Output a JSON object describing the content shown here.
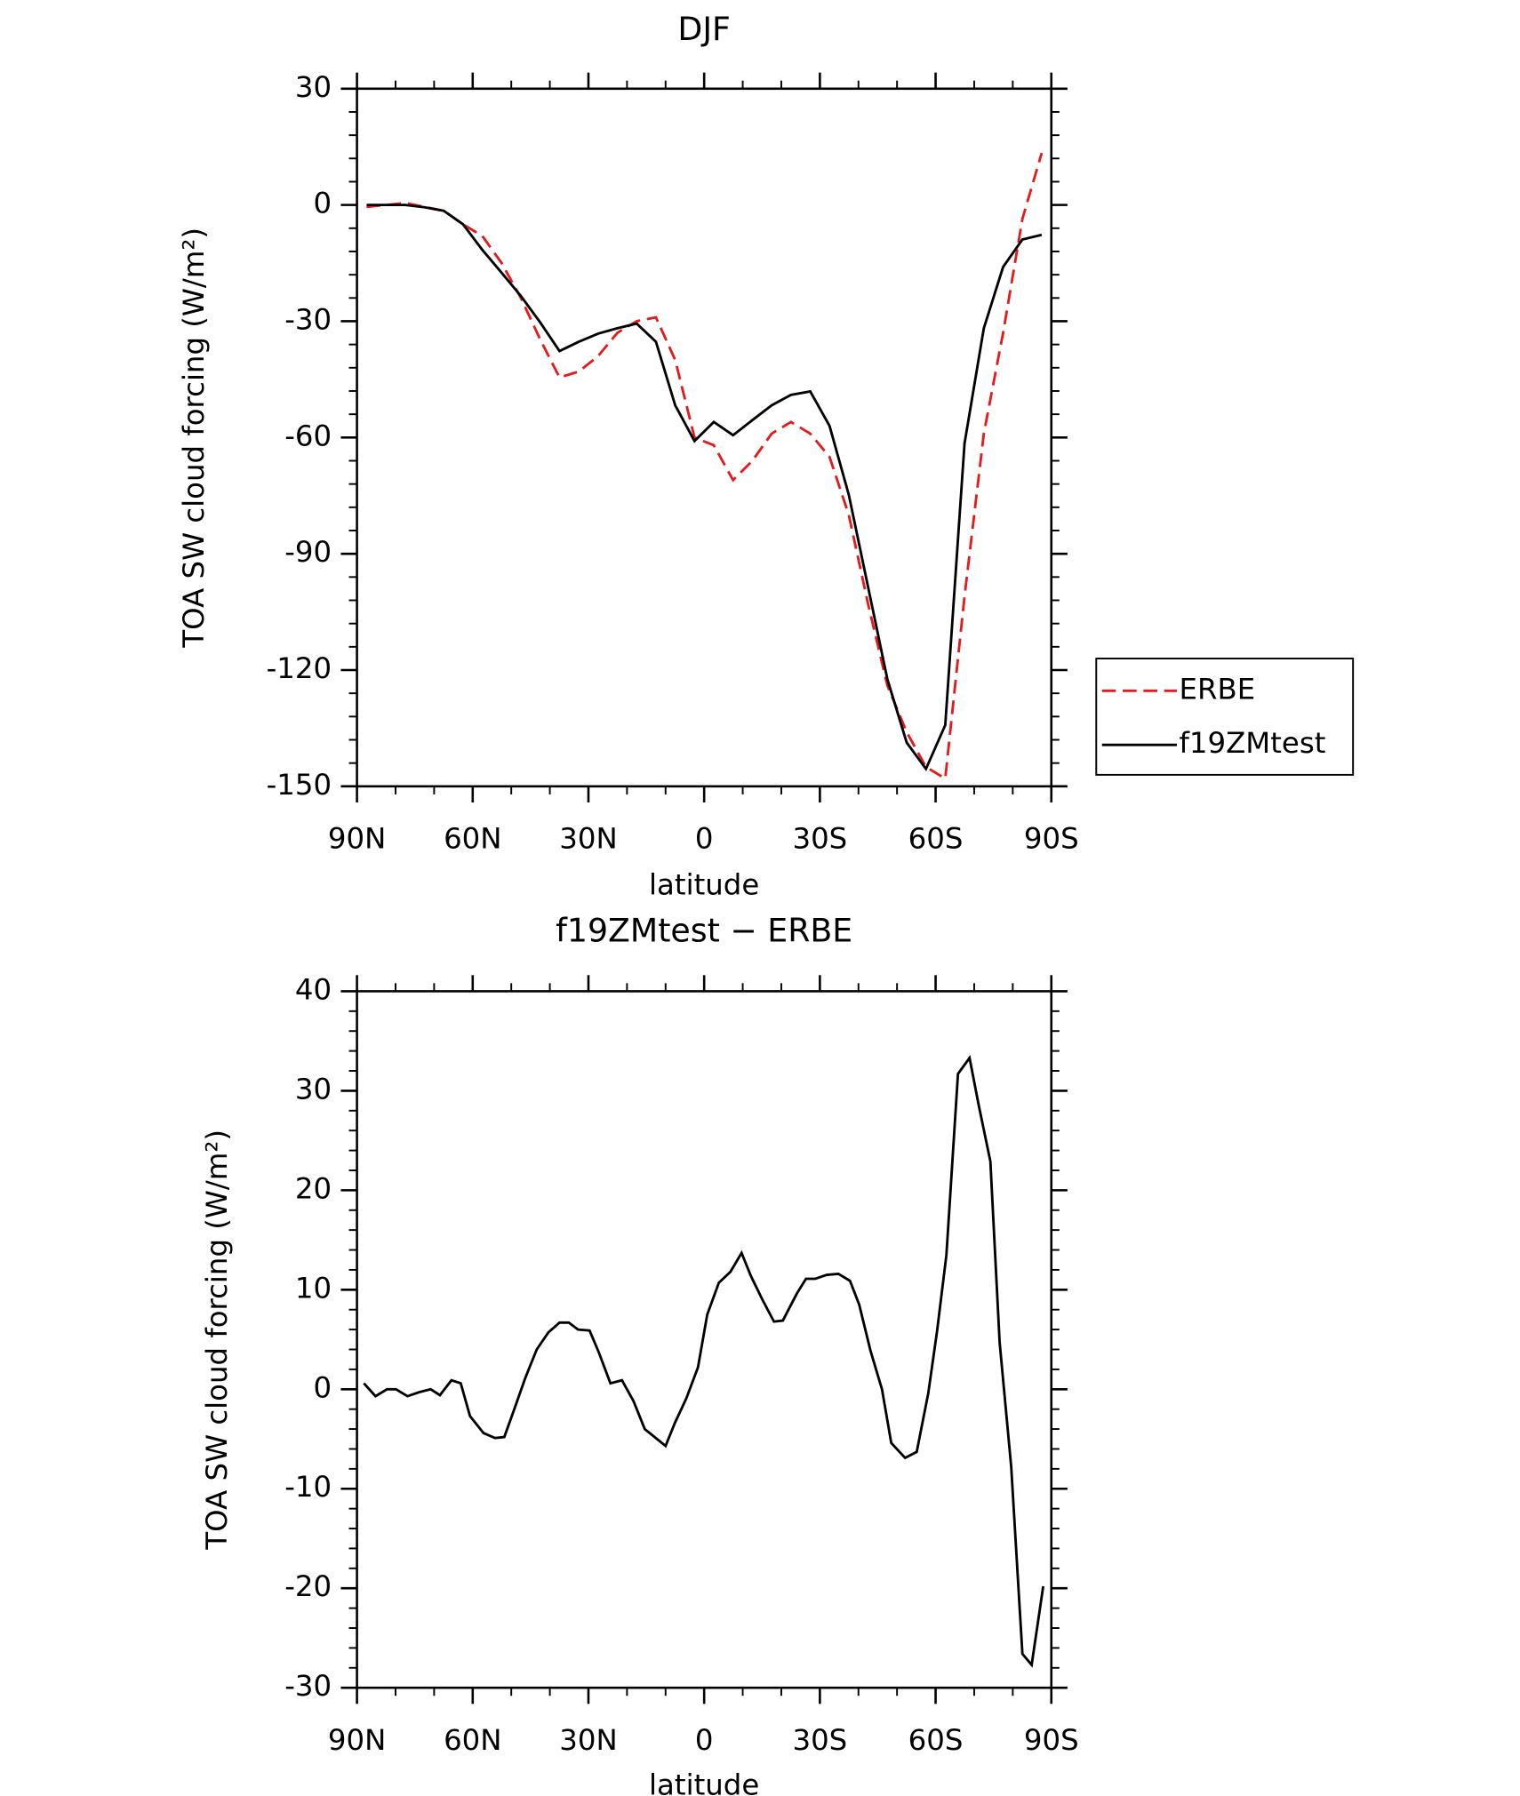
{
  "chart_data": [
    {
      "type": "line",
      "title": "DJF",
      "x_label": "latitude",
      "y_label": "TOA SW cloud forcing (W/m²)",
      "x": [
        87.5,
        82.5,
        77.5,
        72.5,
        67.5,
        62.5,
        57.5,
        52.5,
        47.5,
        42.5,
        37.5,
        32.5,
        27.5,
        22.5,
        17.5,
        12.5,
        7.5,
        2.5,
        -2.5,
        -7.5,
        -12.5,
        -17.5,
        -22.5,
        -27.5,
        -32.5,
        -37.5,
        -42.5,
        -47.5,
        -52.5,
        -57.5,
        -62.5,
        -67.5,
        -72.5,
        -77.5,
        -82.5,
        -87.5
      ],
      "series": [
        {
          "name": "ERBE",
          "color": "#e41a1c",
          "linestyle": "dashed",
          "values": [
            -0.5,
            0,
            0.5,
            -0.5,
            -1.5,
            -5,
            -8,
            -15,
            -24,
            -34.7,
            -44.5,
            -43,
            -39,
            -33,
            -30,
            -29,
            -40,
            -60,
            -62,
            -71,
            -66,
            -59,
            -56,
            -59,
            -65,
            -80,
            -103,
            -124,
            -136,
            -145,
            -148,
            -101,
            -59,
            -33,
            -3.6,
            13.4
          ]
        },
        {
          "name": "f19ZMtest",
          "color": "#000000",
          "linestyle": "solid",
          "values": [
            0,
            0,
            0,
            -0.6,
            -1.5,
            -5,
            -11.6,
            -17.5,
            -23.5,
            -30.3,
            -37.7,
            -35.3,
            -33.2,
            -31.8,
            -30.6,
            -35.3,
            -51.7,
            -60.9,
            -56,
            -59.4,
            -55.5,
            -51.7,
            -49,
            -48.1,
            -57,
            -74.8,
            -98.6,
            -122.4,
            -138.7,
            -145.5,
            -134.2,
            -61.5,
            -31.8,
            -16,
            -8.9,
            -7.7
          ]
        }
      ],
      "xlim": [
        90,
        -90
      ],
      "xticks": [
        {
          "value": 90,
          "label": "90N"
        },
        {
          "value": 60,
          "label": "60N"
        },
        {
          "value": 30,
          "label": "30N"
        },
        0,
        {
          "value": -30,
          "label": "30S"
        },
        {
          "value": -60,
          "label": "60S"
        },
        {
          "value": -90,
          "label": "90S"
        }
      ],
      "ylim": [
        -150,
        30
      ],
      "yticks": [
        -150,
        -120,
        -90,
        -60,
        -30,
        0,
        30
      ],
      "legend": "right"
    },
    {
      "type": "line",
      "title": "f19ZMtest − ERBE",
      "x_label": "latitude",
      "y_label": "TOA SW cloud forcing (W/m²)",
      "x": [
        88.2,
        85.2,
        82.2,
        79.9,
        76.9,
        73.9,
        70.9,
        68.5,
        65.5,
        63.1,
        60.7,
        57.2,
        54.2,
        51.8,
        49.4,
        46.4,
        43.4,
        40.4,
        37.5,
        35.1,
        32.7,
        29.7,
        27.3,
        24.3,
        21.3,
        18.3,
        15.4,
        10.0,
        7.6,
        4.6,
        1.6,
        -0.8,
        -3.8,
        -6.8,
        -9.7,
        -12.1,
        -15.1,
        -18.1,
        -20.4,
        -24.0,
        -26.4,
        -28.8,
        -31.8,
        -34.8,
        -37.8,
        -40.2,
        -43.1,
        -46.1,
        -48.5,
        -52.1,
        -55.1,
        -58.1,
        -60.4,
        -62.8,
        -65.8,
        -68.8,
        -71.2,
        -74.2,
        -76.6,
        -79.6,
        -82.5,
        -84.9,
        -87.9
      ],
      "values": [
        0.6,
        -0.7,
        0,
        0,
        -0.7,
        -0.3,
        0,
        -0.6,
        0.9,
        0.6,
        -2.7,
        -4.4,
        -4.9,
        -4.8,
        -2.2,
        1.1,
        4,
        5.7,
        6.7,
        6.7,
        6,
        5.9,
        3.7,
        0.6,
        0.9,
        -1.2,
        -4,
        -5.7,
        -3.4,
        -0.9,
        2.2,
        7.5,
        10.7,
        11.8,
        13.7,
        11.4,
        9,
        6.8,
        6.9,
        9.6,
        11.1,
        11.1,
        11.5,
        11.6,
        10.9,
        8.5,
        3.9,
        0,
        -5.4,
        -6.9,
        -6.3,
        -0.4,
        5.9,
        13.5,
        31.7,
        33.3,
        28.5,
        22.9,
        4.7,
        -7.8,
        -26.6,
        -27.7,
        -19.8
      ],
      "color": "#000000",
      "xlim": [
        90,
        -90
      ],
      "xticks": [
        {
          "value": 90,
          "label": "90N"
        },
        {
          "value": 60,
          "label": "60N"
        },
        {
          "value": 30,
          "label": "30N"
        },
        0,
        {
          "value": -30,
          "label": "30S"
        },
        {
          "value": -60,
          "label": "60S"
        },
        {
          "value": -90,
          "label": "90S"
        }
      ],
      "ylim": [
        -30,
        40
      ],
      "yticks": [
        -30,
        -20,
        -10,
        0,
        10,
        20,
        30,
        40
      ]
    }
  ]
}
